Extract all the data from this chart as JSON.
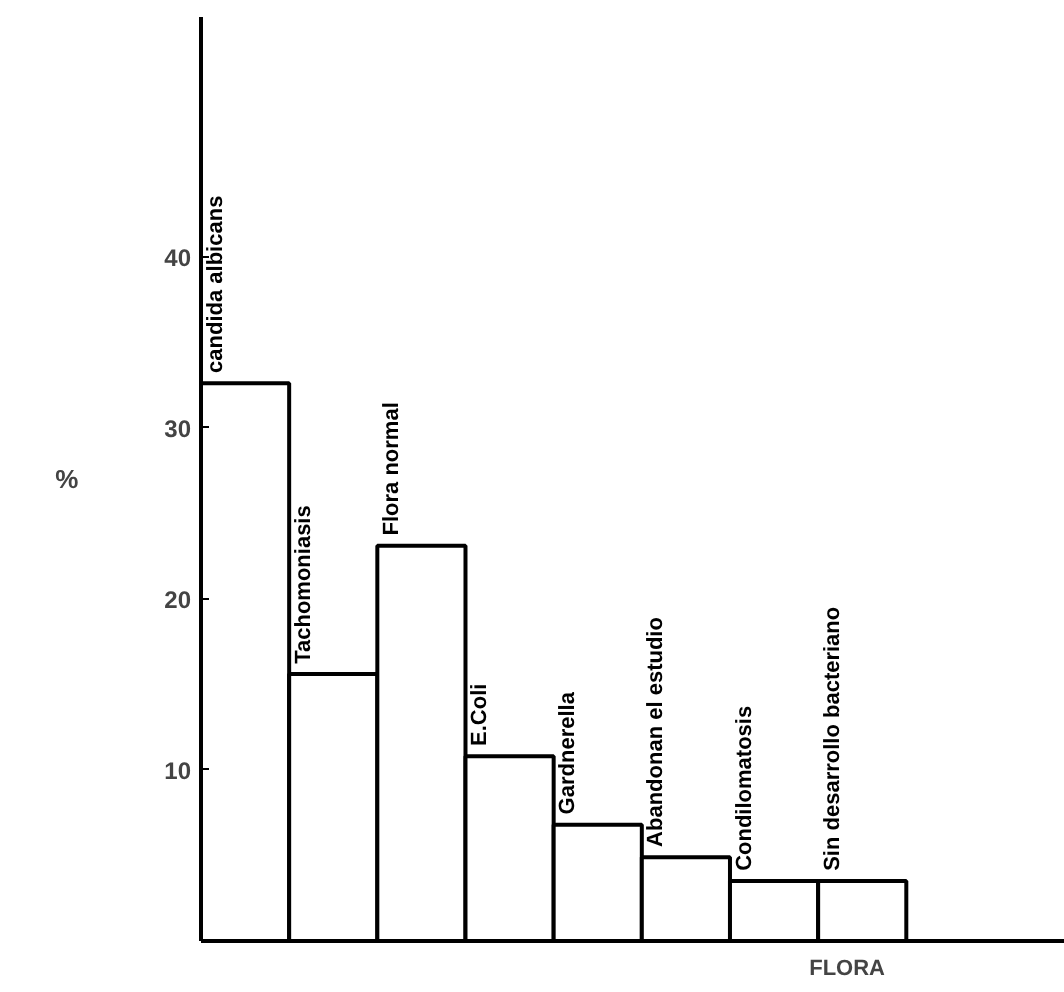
{
  "chart_data": {
    "type": "bar",
    "xlabel": "FLORA",
    "ylabel": "%",
    "categories": [
      "candida albicans",
      "Tachomoniasis",
      "Flora normal",
      "E.Coli",
      "Gardnerella",
      "Abandonan el estudio",
      "Condilomatosis",
      "Sin desarrollo bacteriano"
    ],
    "values": [
      32.6,
      15.6,
      23.1,
      10.8,
      6.8,
      4.9,
      3.5,
      3.5
    ],
    "color": "#ffffff",
    "ylim": [
      0,
      54
    ],
    "yticks": [
      10,
      20,
      30,
      40
    ],
    "grid": false
  }
}
